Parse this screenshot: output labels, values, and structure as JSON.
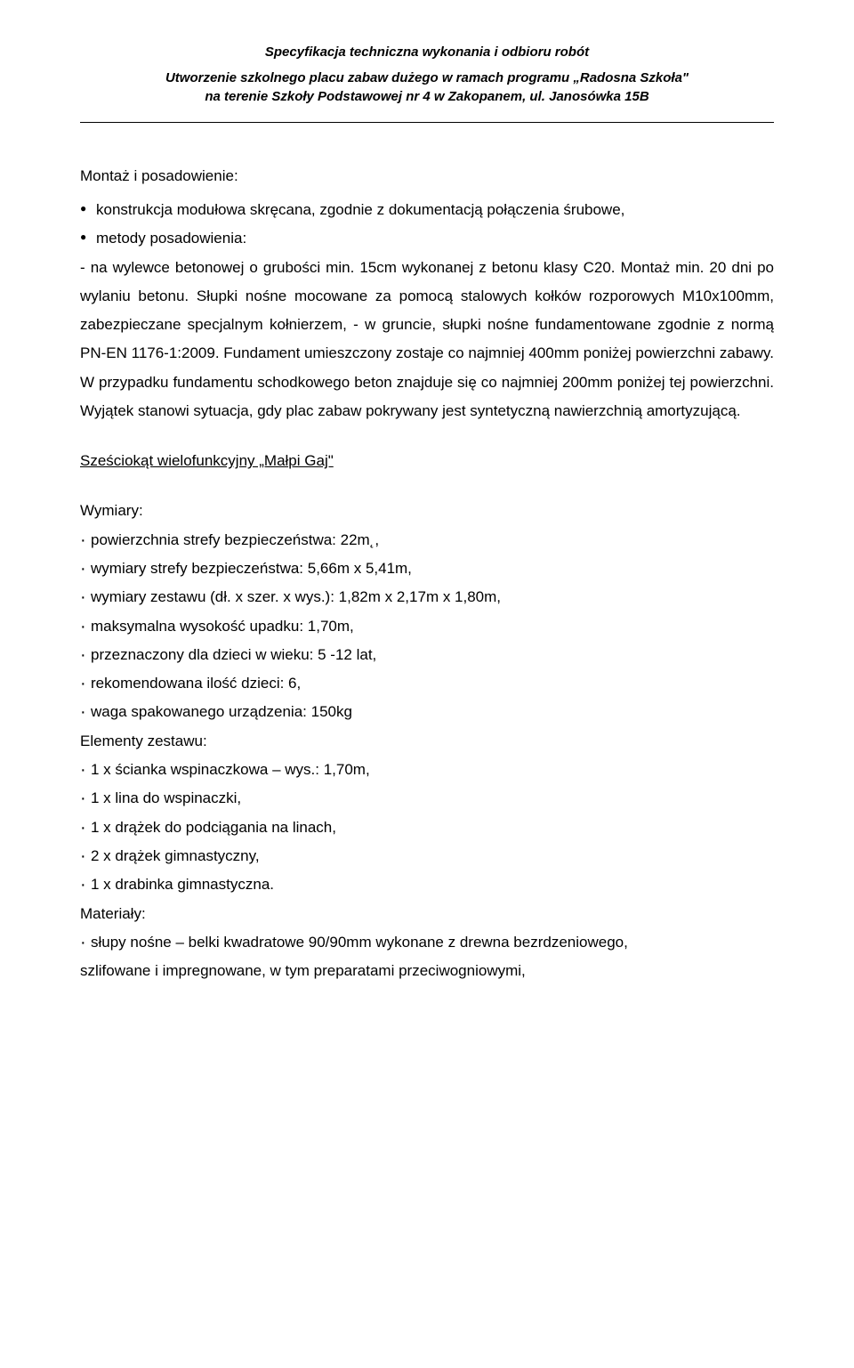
{
  "header": {
    "title": "Specyfikacja techniczna wykonania i odbioru robót",
    "subtitle_line1": "Utworzenie szkolnego placu zabaw dużego w ramach programu „Radosna Szkoła\"",
    "subtitle_line2": "na terenie Szkoły Podstawowej nr 4 w Zakopanem, ul. Janosówka 15B"
  },
  "montaz": {
    "heading": "Montaż i posadowienie:",
    "bullets": [
      "konstrukcja modułowa skręcana, zgodnie z dokumentacją połączenia śrubowe,",
      "metody posadowienia:"
    ],
    "paragraph": "- na wylewce betonowej o grubości min. 15cm wykonanej z betonu klasy C20. Montaż min. 20 dni po wylaniu betonu. Słupki nośne mocowane za pomocą stalowych kołków rozporowych M10x100mm, zabezpieczane specjalnym kołnierzem, - w gruncie, słupki nośne fundamentowane zgodnie z normą PN-EN 1176-1:2009. Fundament umieszczony zostaje co najmniej 400mm poniżej powierzchni zabawy. W przypadku fundamentu schodkowego beton znajduje się co najmniej 200mm poniżej tej powierzchni. Wyjątek stanowi sytuacja, gdy plac zabaw pokrywany jest syntetyczną nawierzchnią amortyzującą."
  },
  "szesciokat": {
    "heading": "Sześciokąt wielofunkcyjny „Małpi Gaj\"",
    "wymiary_label": "Wymiary:",
    "wymiary": [
      "powierzchnia strefy bezpieczeństwa: 22m˛,",
      "wymiary strefy bezpieczeństwa: 5,66m x 5,41m,",
      "wymiary zestawu (dł. x szer. x wys.): 1,82m x 2,17m x 1,80m,",
      "maksymalna wysokość upadku: 1,70m,",
      "przeznaczony dla dzieci w wieku: 5 -12 lat,",
      "rekomendowana ilość dzieci: 6,",
      "waga spakowanego urządzenia: 150kg"
    ],
    "elementy_label": "Elementy zestawu:",
    "elementy": [
      "1 x ścianka wspinaczkowa – wys.: 1,70m,",
      "1 x lina do wspinaczki,",
      "1 x drążek do podciągania na linach,",
      "2 x drążek gimnastyczny,",
      "1 x drabinka gimnastyczna."
    ],
    "materialy_label": "Materiały:",
    "materialy": [
      "słupy nośne – belki kwadratowe 90/90mm wykonane z drewna bezrdzeniowego,"
    ],
    "materialy_cont": "szlifowane i impregnowane, w tym preparatami przeciwogniowymi,"
  },
  "styles": {
    "font_family": "Arial",
    "body_font_size": 17,
    "header_font_size": 15,
    "text_color": "#000000",
    "background_color": "#ffffff",
    "line_height": 1.9
  }
}
